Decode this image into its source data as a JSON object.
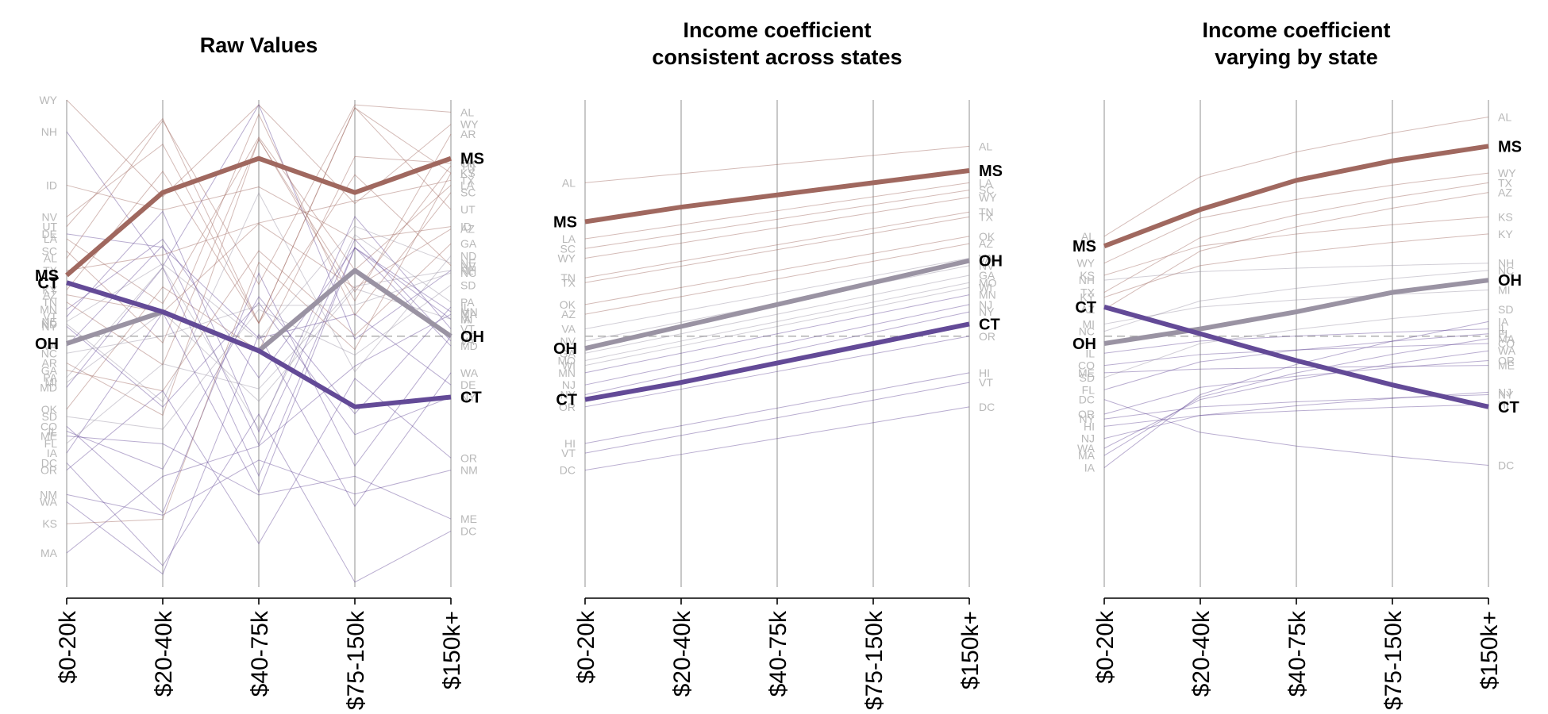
{
  "colors": {
    "high": "#a0685f",
    "mid": "#9a93a3",
    "low": "#634a97",
    "ref_line": "#a8a8a8",
    "axis": "#b5b5b5"
  },
  "chart_data": [
    {
      "type": "line",
      "title": "Raw Values",
      "categories": [
        "$0-20k",
        "$20-40k",
        "$40-75k",
        "$75-150k",
        "$150k+"
      ],
      "ylim": [
        0,
        20
      ],
      "reference": 10.3,
      "highlight": [
        {
          "name": "MS",
          "values": [
            12.8,
            16.2,
            17.6,
            16.2,
            17.6
          ],
          "tone": "high"
        },
        {
          "name": "OH",
          "values": [
            10.0,
            11.3,
            9.7,
            13.0,
            10.3
          ],
          "tone": "mid"
        },
        {
          "name": "CT",
          "values": [
            12.5,
            11.3,
            9.7,
            7.4,
            7.8
          ],
          "tone": "low"
        }
      ],
      "states": [
        {
          "name": "WY",
          "start": 20.0,
          "end": 19.0,
          "tone": "high"
        },
        {
          "name": "NH",
          "start": 18.7,
          "end": 13.0,
          "tone": "low"
        },
        {
          "name": "ID",
          "start": 16.5,
          "end": 14.8,
          "tone": "high"
        },
        {
          "name": "NV",
          "start": 15.2,
          "end": 13.2,
          "tone": "high"
        },
        {
          "name": "UT",
          "start": 14.8,
          "end": 15.5,
          "tone": "high"
        },
        {
          "name": "DE",
          "start": 14.5,
          "end": 8.3,
          "tone": "low"
        },
        {
          "name": "LA",
          "start": 14.3,
          "end": 16.5,
          "tone": "high"
        },
        {
          "name": "SC",
          "start": 13.8,
          "end": 16.2,
          "tone": "high"
        },
        {
          "name": "AZ",
          "start": 12.0,
          "end": 14.7,
          "tone": "high"
        },
        {
          "name": "MN",
          "start": 11.4,
          "end": 11.3,
          "tone": "low"
        },
        {
          "name": "VT",
          "start": 11.1,
          "end": 10.6,
          "tone": "low"
        },
        {
          "name": "NE",
          "start": 10.9,
          "end": 13.3,
          "tone": "mid"
        },
        {
          "name": "NY",
          "start": 10.7,
          "end": 7.8,
          "tone": "low"
        },
        {
          "name": "AR",
          "start": 9.2,
          "end": 18.6,
          "tone": "high"
        },
        {
          "name": "GA",
          "start": 8.9,
          "end": 14.1,
          "tone": "high"
        },
        {
          "name": "MI",
          "start": 8.4,
          "end": 11.0,
          "tone": "mid"
        },
        {
          "name": "MD",
          "start": 8.2,
          "end": 9.9,
          "tone": "low"
        },
        {
          "name": "OK",
          "start": 7.3,
          "end": 17.4,
          "tone": "high"
        },
        {
          "name": "SD",
          "start": 7.0,
          "end": 12.4,
          "tone": "mid"
        },
        {
          "name": "CO",
          "start": 6.6,
          "end": 10.3,
          "tone": "low"
        },
        {
          "name": "IL",
          "start": 6.4,
          "end": 11.5,
          "tone": "low"
        },
        {
          "name": "FL",
          "start": 5.9,
          "end": 13.0,
          "tone": "mid"
        },
        {
          "name": "IA",
          "start": 5.5,
          "end": 11.0,
          "tone": "low"
        },
        {
          "name": "OR",
          "start": 4.8,
          "end": 5.3,
          "tone": "low"
        },
        {
          "name": "NM",
          "start": 3.8,
          "end": 4.8,
          "tone": "low"
        },
        {
          "name": "WA",
          "start": 3.5,
          "end": 8.8,
          "tone": "low"
        },
        {
          "name": "KS",
          "start": 2.6,
          "end": 17.0,
          "tone": "high"
        },
        {
          "name": "MA",
          "start": 1.4,
          "end": 11.2,
          "tone": "low"
        },
        {
          "name": "AL",
          "start": 13.5,
          "end": 19.5,
          "tone": "high"
        },
        {
          "name": "KY",
          "start": 12.2,
          "end": 17.0,
          "tone": "high"
        },
        {
          "name": "TX",
          "start": 13.0,
          "end": 16.7,
          "tone": "high"
        },
        {
          "name": "TN",
          "start": 11.7,
          "end": 17.3,
          "tone": "high"
        },
        {
          "name": "ND",
          "start": 10.8,
          "end": 13.6,
          "tone": "mid"
        },
        {
          "name": "NC",
          "start": 9.6,
          "end": 12.9,
          "tone": "mid"
        },
        {
          "name": "PA",
          "start": 8.6,
          "end": 11.7,
          "tone": "mid"
        },
        {
          "name": "VA",
          "start": 9.9,
          "end": 10.1,
          "tone": "low"
        },
        {
          "name": "ME",
          "start": 6.2,
          "end": 2.8,
          "tone": "low"
        },
        {
          "name": "DC",
          "start": 5.1,
          "end": 2.3,
          "tone": "low"
        }
      ]
    },
    {
      "type": "line",
      "title": "Income coefficient\nconsistent across states",
      "categories": [
        "$0-20k",
        "$20-40k",
        "$40-75k",
        "$75-150k",
        "$150k+"
      ],
      "ylim": [
        0,
        20
      ],
      "reference": 10.3,
      "highlight": [
        {
          "name": "MS",
          "values": [
            15.0,
            15.6,
            16.1,
            16.6,
            17.1
          ],
          "tone": "high"
        },
        {
          "name": "OH",
          "values": [
            9.8,
            10.7,
            11.6,
            12.5,
            13.4
          ],
          "tone": "mid"
        },
        {
          "name": "CT",
          "values": [
            7.7,
            8.4,
            9.2,
            10.0,
            10.8
          ],
          "tone": "low"
        }
      ],
      "states": [
        {
          "name": "AL",
          "start": 16.6,
          "end": 18.1,
          "tone": "high"
        },
        {
          "name": "LA",
          "start": 14.3,
          "end": 16.6,
          "tone": "high"
        },
        {
          "name": "SC",
          "start": 13.9,
          "end": 16.3,
          "tone": "high"
        },
        {
          "name": "WY",
          "start": 13.5,
          "end": 16.0,
          "tone": "high"
        },
        {
          "name": "TN",
          "start": 12.7,
          "end": 15.4,
          "tone": "high"
        },
        {
          "name": "TX",
          "start": 12.5,
          "end": 15.2,
          "tone": "high"
        },
        {
          "name": "OK",
          "start": 11.6,
          "end": 14.4,
          "tone": "high"
        },
        {
          "name": "AZ",
          "start": 11.2,
          "end": 14.1,
          "tone": "high"
        },
        {
          "name": "VA",
          "start": 10.6,
          "end": 13.5,
          "tone": "mid"
        },
        {
          "name": "NV",
          "start": 10.1,
          "end": 13.2,
          "tone": "mid"
        },
        {
          "name": "GA",
          "start": 9.6,
          "end": 12.8,
          "tone": "mid"
        },
        {
          "name": "MO",
          "start": 9.3,
          "end": 12.5,
          "tone": "mid"
        },
        {
          "name": "WI",
          "start": 9.1,
          "end": 12.3,
          "tone": "mid"
        },
        {
          "name": "MN",
          "start": 8.8,
          "end": 12.0,
          "tone": "low"
        },
        {
          "name": "NJ",
          "start": 8.3,
          "end": 11.6,
          "tone": "low"
        },
        {
          "name": "NY",
          "start": 7.9,
          "end": 11.3,
          "tone": "low"
        },
        {
          "name": "OR",
          "start": 7.4,
          "end": 10.3,
          "tone": "low"
        },
        {
          "name": "HI",
          "start": 5.9,
          "end": 8.8,
          "tone": "low"
        },
        {
          "name": "VT",
          "start": 5.5,
          "end": 8.4,
          "tone": "low"
        },
        {
          "name": "DC",
          "start": 4.8,
          "end": 7.4,
          "tone": "low"
        }
      ]
    },
    {
      "type": "line",
      "title": "Income coefficient\nvarying by state",
      "categories": [
        "$0-20k",
        "$20-40k",
        "$40-75k",
        "$75-150k",
        "$150k+"
      ],
      "ylim": [
        0,
        20
      ],
      "reference": 10.3,
      "highlight": [
        {
          "name": "MS",
          "values": [
            14.0,
            15.5,
            16.7,
            17.5,
            18.1
          ],
          "tone": "high"
        },
        {
          "name": "OH",
          "values": [
            10.0,
            10.6,
            11.3,
            12.1,
            12.6
          ],
          "tone": "mid"
        },
        {
          "name": "CT",
          "values": [
            11.5,
            10.4,
            9.3,
            8.3,
            7.4
          ],
          "tone": "low"
        }
      ],
      "states": [
        {
          "name": "AL",
          "start": 14.4,
          "end": 19.3,
          "tone": "high"
        },
        {
          "name": "WY",
          "start": 13.3,
          "end": 17.0,
          "tone": "high"
        },
        {
          "name": "NH",
          "start": 12.6,
          "end": 13.3,
          "tone": "mid"
        },
        {
          "name": "TX",
          "start": 12.1,
          "end": 16.6,
          "tone": "high"
        },
        {
          "name": "AZ",
          "start": 11.4,
          "end": 16.2,
          "tone": "high"
        },
        {
          "name": "MI",
          "start": 10.8,
          "end": 12.2,
          "tone": "mid"
        },
        {
          "name": "NC",
          "start": 10.5,
          "end": 13.0,
          "tone": "mid"
        },
        {
          "name": "IL",
          "start": 9.6,
          "end": 10.6,
          "tone": "low"
        },
        {
          "name": "CO",
          "start": 9.1,
          "end": 10.0,
          "tone": "low"
        },
        {
          "name": "SD",
          "start": 8.6,
          "end": 11.4,
          "tone": "mid"
        },
        {
          "name": "FL",
          "start": 8.1,
          "end": 10.4,
          "tone": "low"
        },
        {
          "name": "OR",
          "start": 7.1,
          "end": 9.3,
          "tone": "low"
        },
        {
          "name": "HI",
          "start": 6.6,
          "end": 7.5,
          "tone": "low"
        },
        {
          "name": "NJ",
          "start": 6.1,
          "end": 8.0,
          "tone": "low"
        },
        {
          "name": "WA",
          "start": 5.7,
          "end": 9.7,
          "tone": "low"
        },
        {
          "name": "MA",
          "start": 5.4,
          "end": 10.2,
          "tone": "low"
        },
        {
          "name": "IA",
          "start": 4.9,
          "end": 10.9,
          "tone": "low"
        },
        {
          "name": "KS",
          "start": 12.8,
          "end": 15.2,
          "tone": "high"
        },
        {
          "name": "KY",
          "start": 11.9,
          "end": 14.5,
          "tone": "high"
        },
        {
          "name": "ME",
          "start": 8.8,
          "end": 9.1,
          "tone": "low"
        },
        {
          "name": "NY",
          "start": 6.9,
          "end": 7.9,
          "tone": "low"
        },
        {
          "name": "DC",
          "start": 7.7,
          "end": 5.0,
          "tone": "low"
        }
      ]
    }
  ]
}
